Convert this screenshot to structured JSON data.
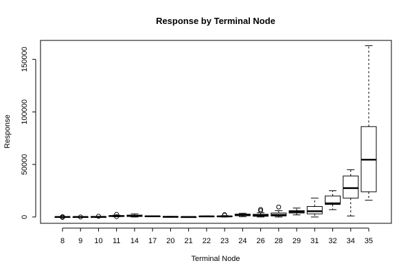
{
  "chart_data": {
    "type": "box",
    "title": "Response by Terminal Node",
    "xlabel": "Terminal Node",
    "ylabel": "Response",
    "ylim": [
      -6000,
      168000
    ],
    "y_ticks": [
      0,
      50000,
      100000,
      150000
    ],
    "y_tick_labels": [
      "0",
      "50000",
      "100000",
      "150000"
    ],
    "grid": false,
    "legend": "none",
    "categories": [
      "8",
      "9",
      "10",
      "11",
      "14",
      "17",
      "20",
      "21",
      "22",
      "23",
      "24",
      "26",
      "28",
      "29",
      "31",
      "32",
      "34",
      "35"
    ],
    "boxes": [
      {
        "node": "8",
        "whisker_low": -400,
        "q1": -200,
        "median": 0,
        "q3": 200,
        "whisker_high": 400,
        "outliers": [
          -300,
          0,
          300
        ]
      },
      {
        "node": "9",
        "whisker_low": -300,
        "q1": -150,
        "median": 0,
        "q3": 150,
        "whisker_high": 300,
        "outliers": [
          0
        ]
      },
      {
        "node": "10",
        "whisker_low": -300,
        "q1": -100,
        "median": 100,
        "q3": 300,
        "whisker_high": 500,
        "outliers": [
          700
        ]
      },
      {
        "node": "11",
        "whisker_low": 200,
        "q1": 500,
        "median": 900,
        "q3": 1300,
        "whisker_high": 1800,
        "outliers": [
          300,
          2500
        ]
      },
      {
        "node": "14",
        "whisker_low": 0,
        "q1": 500,
        "median": 1100,
        "q3": 1800,
        "whisker_high": 3000,
        "outliers": []
      },
      {
        "node": "17",
        "whisker_low": 300,
        "q1": 500,
        "median": 700,
        "q3": 900,
        "whisker_high": 1100,
        "outliers": []
      },
      {
        "node": "20",
        "whisker_low": -200,
        "q1": 0,
        "median": 200,
        "q3": 400,
        "whisker_high": 600,
        "outliers": []
      },
      {
        "node": "21",
        "whisker_low": -200,
        "q1": -100,
        "median": 0,
        "q3": 100,
        "whisker_high": 200,
        "outliers": []
      },
      {
        "node": "22",
        "whisker_low": 200,
        "q1": 400,
        "median": 600,
        "q3": 800,
        "whisker_high": 1000,
        "outliers": []
      },
      {
        "node": "23",
        "whisker_low": 0,
        "q1": 300,
        "median": 600,
        "q3": 900,
        "whisker_high": 1300,
        "outliers": [
          1800,
          2200
        ]
      },
      {
        "node": "24",
        "whisker_low": 300,
        "q1": 1200,
        "median": 2000,
        "q3": 2800,
        "whisker_high": 3600,
        "outliers": []
      },
      {
        "node": "26",
        "whisker_low": 0,
        "q1": 700,
        "median": 1500,
        "q3": 2600,
        "whisker_high": 4000,
        "outliers": [
          6000,
          7200
        ]
      },
      {
        "node": "28",
        "whisker_low": 0,
        "q1": 1000,
        "median": 2000,
        "q3": 3800,
        "whisker_high": 6000,
        "outliers": [
          9500
        ]
      },
      {
        "node": "29",
        "whisker_low": 2000,
        "q1": 3800,
        "median": 5000,
        "q3": 6000,
        "whisker_high": 8500,
        "outliers": []
      },
      {
        "node": "31",
        "whisker_low": 0,
        "q1": 3000,
        "median": 5500,
        "q3": 10000,
        "whisker_high": 18000,
        "outliers": []
      },
      {
        "node": "32",
        "whisker_low": 7000,
        "q1": 12000,
        "median": 13000,
        "q3": 20000,
        "whisker_high": 25000,
        "outliers": []
      },
      {
        "node": "34",
        "whisker_low": 1000,
        "q1": 18000,
        "median": 27500,
        "q3": 39000,
        "whisker_high": 45000,
        "outliers": []
      },
      {
        "node": "35",
        "whisker_low": 16000,
        "q1": 24000,
        "median": 54500,
        "q3": 86000,
        "whisker_high": 163000,
        "outliers": []
      }
    ]
  }
}
